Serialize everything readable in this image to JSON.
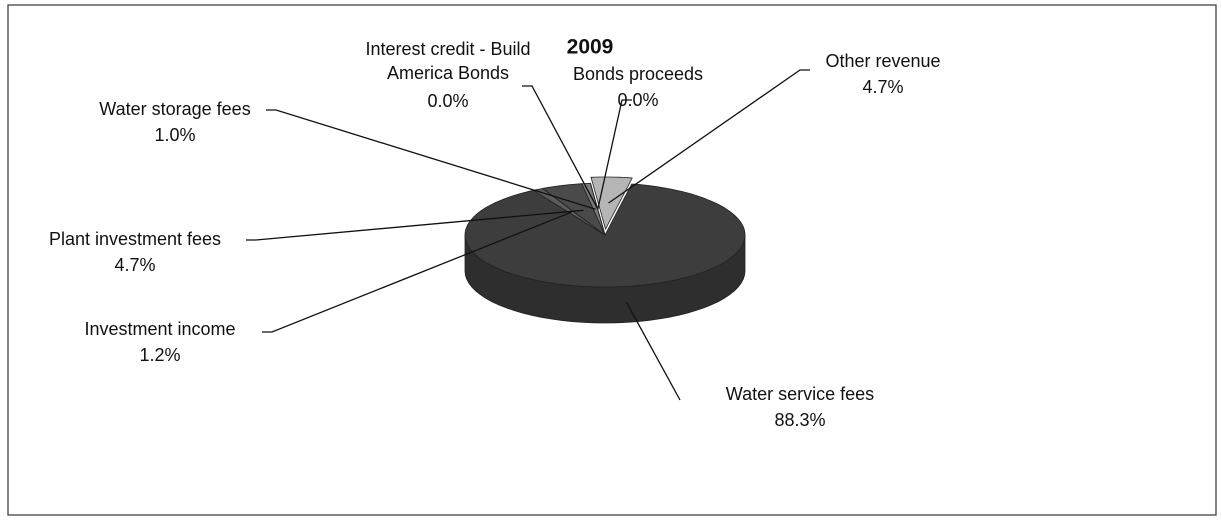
{
  "chart_data": {
    "type": "pie",
    "title": "2009",
    "categories": [
      "Water service fees",
      "Investment income",
      "Plant investment fees",
      "Water storage fees",
      "Interest credit - Build America Bonds",
      "Bonds proceeds",
      "Other revenue"
    ],
    "values": [
      88.3,
      1.2,
      4.7,
      1.0,
      0.0,
      0.0,
      4.7
    ],
    "value_labels": [
      "88.3%",
      "1.2%",
      "4.7%",
      "1.0%",
      "0.0%",
      "0.0%",
      "4.7%"
    ],
    "colors": [
      "#3d3d3d",
      "#5a5a5a",
      "#4a4a4a",
      "#7a7a7a",
      "#888888",
      "#999999",
      "#b5b5b5"
    ]
  }
}
